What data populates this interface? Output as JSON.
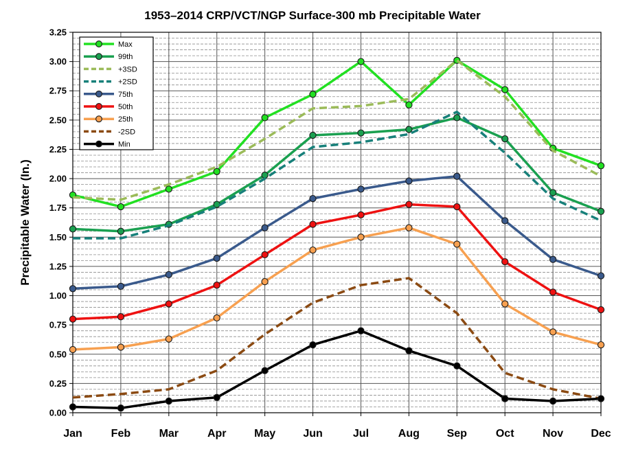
{
  "chart_data": {
    "type": "line",
    "title": "1953–2014 CRP/VCT/NGP  Surface-300 mb Precipitable Water",
    "ylabel": "Precipitable Water (In.)",
    "xlabel": "",
    "categories": [
      "Jan",
      "Feb",
      "Mar",
      "Apr",
      "May",
      "Jun",
      "Jul",
      "Aug",
      "Sep",
      "Oct",
      "Nov",
      "Dec"
    ],
    "ylim": [
      0,
      3.25
    ],
    "yticks": [
      "0.00",
      "0.25",
      "0.50",
      "0.75",
      "1.00",
      "1.25",
      "1.50",
      "1.75",
      "2.00",
      "2.25",
      "2.50",
      "2.75",
      "3.00",
      "3.25"
    ],
    "minor_grid_step": 0.05,
    "grid": true,
    "legend_position": "top-left",
    "series": [
      {
        "name": "Max",
        "color": "#22e022",
        "style": "solid",
        "markers": true,
        "values": [
          1.86,
          1.76,
          1.91,
          2.06,
          2.52,
          2.72,
          3.0,
          2.63,
          3.01,
          2.76,
          2.26,
          2.11
        ]
      },
      {
        "name": "99th",
        "color": "#1aa050",
        "style": "solid",
        "markers": true,
        "values": [
          1.57,
          1.55,
          1.61,
          1.78,
          2.03,
          2.37,
          2.39,
          2.42,
          2.52,
          2.34,
          1.88,
          1.72
        ]
      },
      {
        "name": "+3SD",
        "color": "#9bbb59",
        "style": "dashed",
        "markers": false,
        "values": [
          1.84,
          1.82,
          1.95,
          2.1,
          2.34,
          2.6,
          2.62,
          2.68,
          3.01,
          2.7,
          2.24,
          2.02
        ]
      },
      {
        "name": "+2SD",
        "color": "#17807a",
        "style": "dashed",
        "markers": false,
        "values": [
          1.49,
          1.49,
          1.6,
          1.76,
          2.0,
          2.27,
          2.31,
          2.38,
          2.57,
          2.22,
          1.83,
          1.64
        ]
      },
      {
        "name": "75th",
        "color": "#3a5a8c",
        "style": "solid",
        "markers": true,
        "values": [
          1.06,
          1.08,
          1.18,
          1.32,
          1.58,
          1.83,
          1.91,
          1.98,
          2.02,
          1.64,
          1.31,
          1.17
        ]
      },
      {
        "name": "50th",
        "color": "#ee1111",
        "style": "solid",
        "markers": true,
        "values": [
          0.8,
          0.82,
          0.93,
          1.09,
          1.35,
          1.61,
          1.69,
          1.78,
          1.76,
          1.29,
          1.03,
          0.88
        ]
      },
      {
        "name": "25th",
        "color": "#f7a050",
        "style": "solid",
        "markers": true,
        "values": [
          0.54,
          0.56,
          0.63,
          0.81,
          1.12,
          1.39,
          1.5,
          1.58,
          1.44,
          0.93,
          0.69,
          0.58
        ]
      },
      {
        "name": "-2SD",
        "color": "#8b4a12",
        "style": "dashed",
        "markers": false,
        "values": [
          0.13,
          0.16,
          0.2,
          0.36,
          0.67,
          0.94,
          1.09,
          1.15,
          0.85,
          0.34,
          0.2,
          0.12
        ]
      },
      {
        "name": "Min",
        "color": "#000000",
        "style": "solid",
        "markers": true,
        "values": [
          0.05,
          0.04,
          0.1,
          0.13,
          0.36,
          0.58,
          0.7,
          0.53,
          0.4,
          0.12,
          0.1,
          0.12
        ]
      }
    ]
  }
}
